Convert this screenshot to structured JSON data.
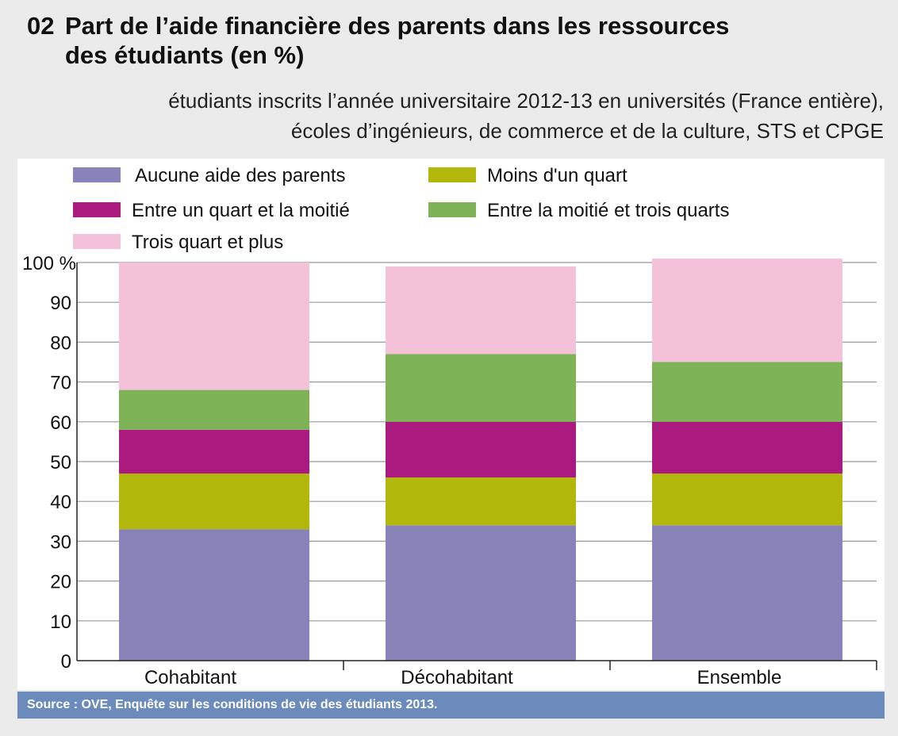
{
  "title": {
    "number": "02",
    "line1": "Part de l’aide financière des parents dans les ressources",
    "line2": "des étudiants (en %)"
  },
  "subtitle": {
    "line1": "étudiants inscrits l’année universitaire 2012-13 en universités (France entière),",
    "line2": "écoles d’ingénieurs, de commerce et de la culture, STS et CPGE"
  },
  "source": "Source : OVE, Enquête sur les conditions de vie des étudiants 2013.",
  "chart_data": {
    "type": "bar",
    "stacked": true,
    "categories": [
      "Cohabitant",
      "Décohabitant",
      "Ensemble"
    ],
    "series": [
      {
        "name": "Aucune aide des parents",
        "color": "#8883b9",
        "values": [
          33,
          34,
          34
        ]
      },
      {
        "name": "Moins d'un quart",
        "color": "#b2b70c",
        "values": [
          14,
          12,
          13
        ]
      },
      {
        "name": "Entre un quart et la moitié",
        "color": "#ab1a7e",
        "values": [
          11,
          14,
          13
        ]
      },
      {
        "name": "Entre la moitié et trois quarts",
        "color": "#7db257",
        "values": [
          10,
          17,
          15
        ]
      },
      {
        "name": "Trois quart et plus",
        "color": "#f3c2d8",
        "values": [
          32,
          22,
          26
        ]
      }
    ],
    "ylim": [
      0,
      100
    ],
    "yticks": [
      "0",
      "10",
      "20",
      "30",
      "40",
      "50",
      "60",
      "70",
      "80",
      "90",
      "100 %"
    ],
    "grid": true,
    "legend": "top"
  }
}
